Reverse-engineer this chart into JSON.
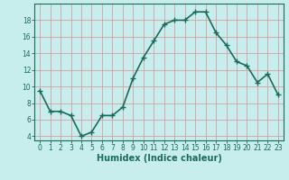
{
  "x": [
    0,
    1,
    2,
    3,
    4,
    5,
    6,
    7,
    8,
    9,
    10,
    11,
    12,
    13,
    14,
    15,
    16,
    17,
    18,
    19,
    20,
    21,
    22,
    23
  ],
  "y": [
    9.5,
    7.0,
    7.0,
    6.5,
    4.0,
    4.5,
    6.5,
    6.5,
    7.5,
    11.0,
    13.5,
    15.5,
    17.5,
    18.0,
    18.0,
    19.0,
    19.0,
    16.5,
    15.0,
    13.0,
    12.5,
    10.5,
    11.5,
    9.0
  ],
  "line_color": "#1a6b5a",
  "marker": "+",
  "marker_size": 4,
  "bg_color": "#c8eded",
  "grid_color": "#d4a0a0",
  "xlabel": "Humidex (Indice chaleur)",
  "ylabel": "",
  "xlim": [
    -0.5,
    23.5
  ],
  "ylim": [
    3.5,
    20.0
  ],
  "yticks": [
    4,
    6,
    8,
    10,
    12,
    14,
    16,
    18
  ],
  "xticks": [
    0,
    1,
    2,
    3,
    4,
    5,
    6,
    7,
    8,
    9,
    10,
    11,
    12,
    13,
    14,
    15,
    16,
    17,
    18,
    19,
    20,
    21,
    22,
    23
  ],
  "xtick_labels": [
    "0",
    "1",
    "2",
    "3",
    "4",
    "5",
    "6",
    "7",
    "8",
    "9",
    "10",
    "11",
    "12",
    "13",
    "14",
    "15",
    "16",
    "17",
    "18",
    "19",
    "20",
    "21",
    "22",
    "23"
  ],
  "line_width": 1.2,
  "xlabel_fontsize": 7,
  "tick_fontsize": 5.5
}
